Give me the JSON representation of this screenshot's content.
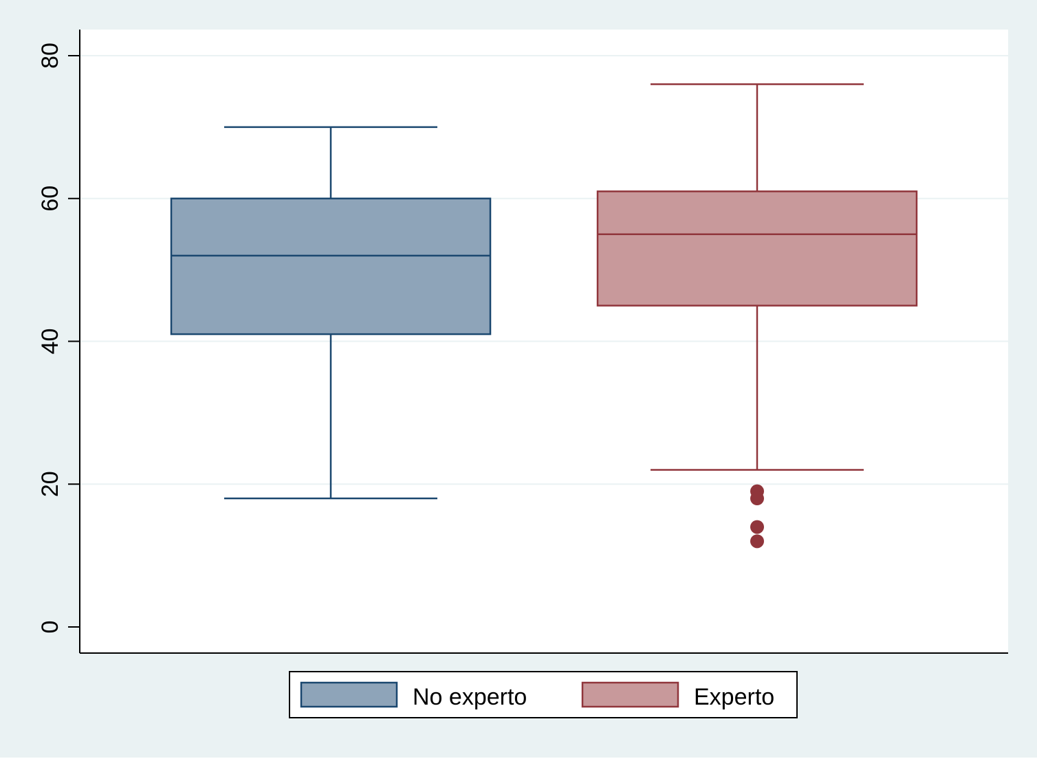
{
  "colors": {
    "outer_background": "#eaf2f3",
    "plot_background": "#ffffff",
    "gridline": "#eaf2f3",
    "axis": "#000000"
  },
  "chart_data": {
    "type": "box",
    "title": "",
    "xlabel": "",
    "ylabel": "",
    "ylim": [
      0,
      80
    ],
    "yticks": [
      0,
      20,
      40,
      60,
      80
    ],
    "grid": true,
    "legend_position": "bottom",
    "series": [
      {
        "name": "No experto",
        "color": "#8ea4b9",
        "edge_color": "#1a476f",
        "whisker_low": 18,
        "q1": 41,
        "median": 52,
        "q3": 60,
        "whisker_high": 70,
        "outliers": []
      },
      {
        "name": "Experto",
        "color": "#c8999b",
        "edge_color": "#90353b",
        "whisker_low": 22,
        "q1": 45,
        "median": 55,
        "q3": 61,
        "whisker_high": 76,
        "outliers": [
          19,
          18,
          14,
          12
        ]
      }
    ]
  }
}
